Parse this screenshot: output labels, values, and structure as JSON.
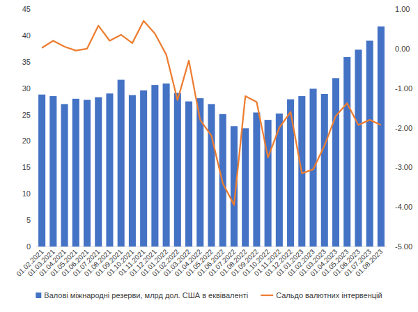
{
  "chart_data": {
    "type": "bar",
    "categories": [
      "01.02.2021",
      "01.03.2021",
      "01.04.2021",
      "01.05.2021",
      "01.06.2021",
      "01.07.2021",
      "01.08.2021",
      "01.09.2021",
      "01.10.2021",
      "01.11.2021",
      "01.12.2021",
      "01.01.2022",
      "01.02.2022",
      "01.03.2022",
      "01.04.2022",
      "01.05.2022",
      "01.06.2022",
      "01.07.2022",
      "01.08.2022",
      "01.09.2022",
      "01.10.2022",
      "01.11.2022",
      "01.12.2022",
      "01.01.2023",
      "01.02.2023",
      "01.03.2023",
      "01.04.2023",
      "01.05.2023",
      "01.06.2023",
      "01.07.2023",
      "01.08.2023"
    ],
    "series": [
      {
        "name": "Валові міжнародні резерви, млрд дол. США в еквіваленті",
        "type": "bar",
        "color": "#4472c4",
        "values": [
          28.8,
          28.5,
          27.0,
          28.0,
          27.8,
          28.3,
          29.0,
          31.6,
          28.7,
          29.6,
          30.6,
          30.9,
          29.1,
          27.5,
          28.1,
          27.0,
          25.1,
          22.8,
          22.4,
          25.4,
          24.0,
          25.2,
          27.9,
          28.5,
          29.9,
          28.9,
          31.9,
          35.9,
          37.3,
          39.0,
          41.7
        ]
      },
      {
        "name": "Сальдо валютних інтервенцій",
        "type": "line",
        "axis": "y2",
        "color": "#ed7d31",
        "values": [
          0.02,
          0.2,
          0.05,
          -0.05,
          0.0,
          0.58,
          0.2,
          0.35,
          0.14,
          0.7,
          0.38,
          -0.15,
          -1.3,
          -0.3,
          -1.8,
          -2.2,
          -3.4,
          -3.95,
          -1.2,
          -1.35,
          -2.75,
          -2.0,
          -1.6,
          -3.15,
          -3.05,
          -2.45,
          -1.7,
          -1.38,
          -1.93,
          -1.8,
          -1.93
        ]
      }
    ],
    "ylim": [
      0,
      45
    ],
    "yticks": [
      0,
      5,
      10,
      15,
      20,
      25,
      30,
      35,
      40,
      45
    ],
    "y2lim": [
      -5,
      1
    ],
    "y2ticks": [
      {
        "value": 1,
        "label": "1.00"
      },
      {
        "value": 0,
        "label": "0.00"
      },
      {
        "value": -1,
        "label": "-1.00"
      },
      {
        "value": -2,
        "label": "-2.00"
      },
      {
        "value": -3,
        "label": "-3.00"
      },
      {
        "value": -4,
        "label": "-4.00"
      },
      {
        "value": -5,
        "label": "-5.00"
      }
    ],
    "grid": false,
    "legend": "bottom"
  }
}
